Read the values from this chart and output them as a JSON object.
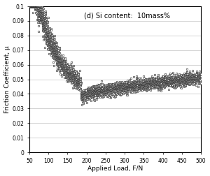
{
  "title": "(d) Si content:  10mass%",
  "xlabel": "Applied Load, F/N",
  "ylabel": "Friction Coefficient, μ",
  "xlim": [
    50,
    500
  ],
  "ylim": [
    0,
    0.1
  ],
  "xticks": [
    50,
    100,
    150,
    200,
    250,
    300,
    350,
    400,
    450,
    500
  ],
  "yticks": [
    0,
    0.01,
    0.02,
    0.03,
    0.04,
    0.05,
    0.06,
    0.07,
    0.08,
    0.09,
    0.1
  ],
  "marker": "o",
  "marker_size": 3.5,
  "marker_color": "#222222",
  "marker_facecolor": "white",
  "marker_linewidth": 0.4,
  "background_color": "#ffffff",
  "grid_color": "#cccccc",
  "scatter_noise_seed": 42
}
